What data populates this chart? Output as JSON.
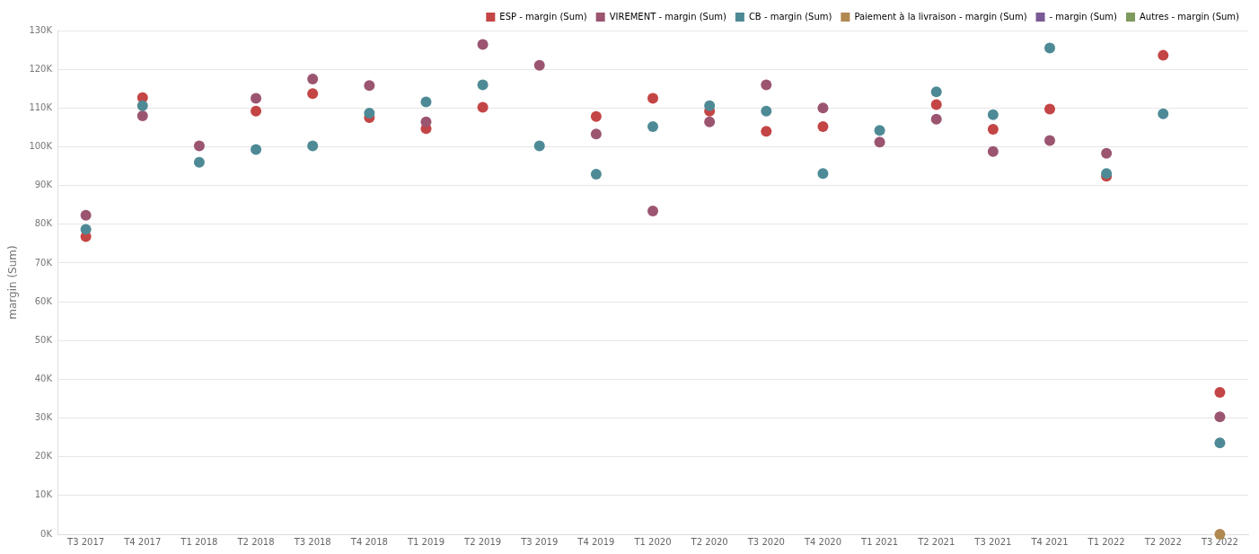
{
  "chart_data": {
    "type": "scatter",
    "ylabel": "margin (Sum)",
    "categories": [
      "T3 2017",
      "T4 2017",
      "T1 2018",
      "T2 2018",
      "T3 2018",
      "T4 2018",
      "T1 2019",
      "T2 2019",
      "T3 2019",
      "T4 2019",
      "T1 2020",
      "T2 2020",
      "T3 2020",
      "T4 2020",
      "T1 2021",
      "T2 2021",
      "T3 2021",
      "T4 2021",
      "T1 2022",
      "T2 2022",
      "T3 2022"
    ],
    "series": [
      {
        "name": "ESP - margin (Sum)",
        "color": "#c44545",
        "values": [
          76.8,
          112.7,
          null,
          109.2,
          113.7,
          107.5,
          104.7,
          110.2,
          null,
          107.8,
          112.5,
          109.2,
          104,
          105.2,
          null,
          110.9,
          104.5,
          109.7,
          92.4,
          123.6,
          36.6
        ]
      },
      {
        "name": "VIREMENT - margin (Sum)",
        "color": "#9b5570",
        "values": [
          82.3,
          108,
          100.2,
          112.5,
          117.5,
          115.8,
          106.4,
          126.4,
          121,
          103.3,
          83.4,
          106.4,
          116,
          110,
          101.2,
          107.1,
          98.8,
          101.6,
          98.3,
          null,
          30.3
        ]
      },
      {
        "name": "CB - margin (Sum)",
        "color": "#4e8a96",
        "values": [
          78.7,
          110.6,
          96,
          99.3,
          100.2,
          108.7,
          111.6,
          116,
          100.2,
          92.9,
          105.2,
          110.6,
          109.2,
          93.1,
          104.2,
          114.2,
          108.3,
          125.5,
          93.1,
          108.5,
          23.6
        ]
      },
      {
        "name": "Paiement à la livraison - margin (Sum)",
        "color": "#b08850",
        "values": [
          null,
          null,
          null,
          null,
          null,
          null,
          null,
          null,
          null,
          null,
          null,
          null,
          null,
          null,
          null,
          null,
          null,
          null,
          null,
          null,
          0
        ]
      },
      {
        "name": "- margin (Sum)",
        "color": "#7a5a94",
        "values": [
          null,
          null,
          null,
          null,
          null,
          null,
          null,
          null,
          null,
          null,
          null,
          null,
          null,
          null,
          null,
          null,
          null,
          null,
          null,
          null,
          null
        ]
      },
      {
        "name": "Autres - margin (Sum)",
        "color": "#7f9a5e",
        "values": [
          null,
          null,
          null,
          null,
          null,
          null,
          null,
          null,
          null,
          null,
          null,
          null,
          null,
          null,
          null,
          null,
          null,
          null,
          null,
          null,
          null
        ]
      }
    ],
    "ylim": [
      0,
      130
    ],
    "yticks": [
      {
        "value": 0,
        "label": "0K"
      },
      {
        "value": 10,
        "label": "10K"
      },
      {
        "value": 20,
        "label": "20K"
      },
      {
        "value": 30,
        "label": "30K"
      },
      {
        "value": 40,
        "label": "40K"
      },
      {
        "value": 50,
        "label": "50K"
      },
      {
        "value": 60,
        "label": "60K"
      },
      {
        "value": 70,
        "label": "70K"
      },
      {
        "value": 80,
        "label": "80K"
      },
      {
        "value": 90,
        "label": "90K"
      },
      {
        "value": 100,
        "label": "100K"
      },
      {
        "value": 110,
        "label": "110K"
      },
      {
        "value": 120,
        "label": "120K"
      },
      {
        "value": 130,
        "label": "130K"
      }
    ],
    "grid": "y",
    "legend": "top right",
    "marker": "circle"
  }
}
